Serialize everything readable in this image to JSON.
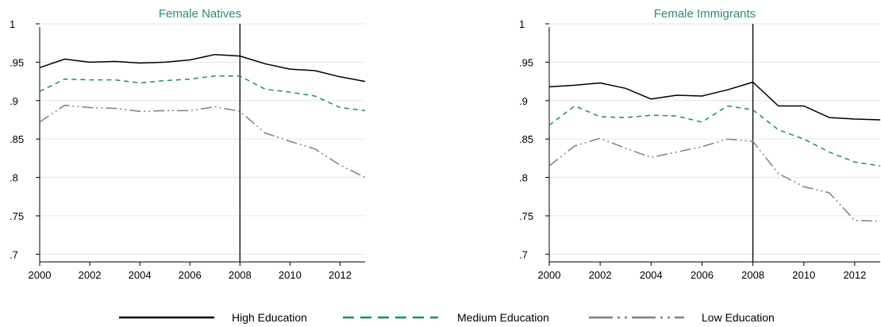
{
  "chart_data": [
    {
      "type": "line",
      "title": "Female Natives",
      "xlabel": "",
      "ylabel": "",
      "xlim": [
        2000,
        2013
      ],
      "ylim": [
        0.69,
        1.0
      ],
      "xticks": [
        "2000",
        "2002",
        "2004",
        "2006",
        "2008",
        "2010",
        "2012"
      ],
      "yticks": [
        "1",
        ".95",
        ".9",
        ".85",
        ".8",
        ".75",
        ".7"
      ],
      "grid": true,
      "vertical_line": 2008,
      "x": [
        2000,
        2001,
        2002,
        2003,
        2004,
        2005,
        2006,
        2007,
        2008,
        2009,
        2010,
        2011,
        2012,
        2013
      ],
      "series": [
        {
          "name": "High Education",
          "values": [
            0.943,
            0.954,
            0.95,
            0.951,
            0.949,
            0.95,
            0.953,
            0.96,
            0.958,
            0.948,
            0.941,
            0.939,
            0.931,
            0.925
          ]
        },
        {
          "name": "Medium Education",
          "values": [
            0.912,
            0.928,
            0.927,
            0.927,
            0.923,
            0.926,
            0.928,
            0.932,
            0.932,
            0.915,
            0.911,
            0.906,
            0.891,
            0.887
          ]
        },
        {
          "name": "Low Education",
          "values": [
            0.872,
            0.894,
            0.891,
            0.89,
            0.886,
            0.887,
            0.887,
            0.892,
            0.886,
            0.858,
            0.847,
            0.837,
            0.816,
            0.8
          ]
        }
      ]
    },
    {
      "type": "line",
      "title": "Female Immigrants",
      "xlabel": "",
      "ylabel": "",
      "xlim": [
        2000,
        2013
      ],
      "ylim": [
        0.69,
        1.0
      ],
      "xticks": [
        "2000",
        "2002",
        "2004",
        "2006",
        "2008",
        "2010",
        "2012"
      ],
      "yticks": [
        "1",
        ".95",
        ".9",
        ".85",
        ".8",
        ".75",
        ".7"
      ],
      "grid": true,
      "vertical_line": 2008,
      "x": [
        2000,
        2001,
        2002,
        2003,
        2004,
        2005,
        2006,
        2007,
        2008,
        2009,
        2010,
        2011,
        2012,
        2013
      ],
      "series": [
        {
          "name": "High Education",
          "values": [
            0.918,
            0.92,
            0.923,
            0.916,
            0.902,
            0.907,
            0.906,
            0.914,
            0.924,
            0.893,
            0.893,
            0.878,
            0.876,
            0.875
          ]
        },
        {
          "name": "Medium Education",
          "values": [
            0.868,
            0.893,
            0.879,
            0.878,
            0.881,
            0.88,
            0.872,
            0.893,
            0.888,
            0.862,
            0.85,
            0.833,
            0.82,
            0.815
          ]
        },
        {
          "name": "Low Education",
          "values": [
            0.815,
            0.841,
            0.851,
            0.838,
            0.826,
            0.833,
            0.84,
            0.85,
            0.847,
            0.805,
            0.788,
            0.78,
            0.744,
            0.743
          ]
        }
      ]
    }
  ],
  "legend": {
    "position": "bottom",
    "items": [
      {
        "label": "High Education",
        "color": "#000000",
        "style": "solid"
      },
      {
        "label": "Medium Education",
        "color": "#1a8a7a",
        "style": "dashed"
      },
      {
        "label": "Low Education",
        "color": "#808080",
        "style": "dash-dot"
      }
    ]
  }
}
